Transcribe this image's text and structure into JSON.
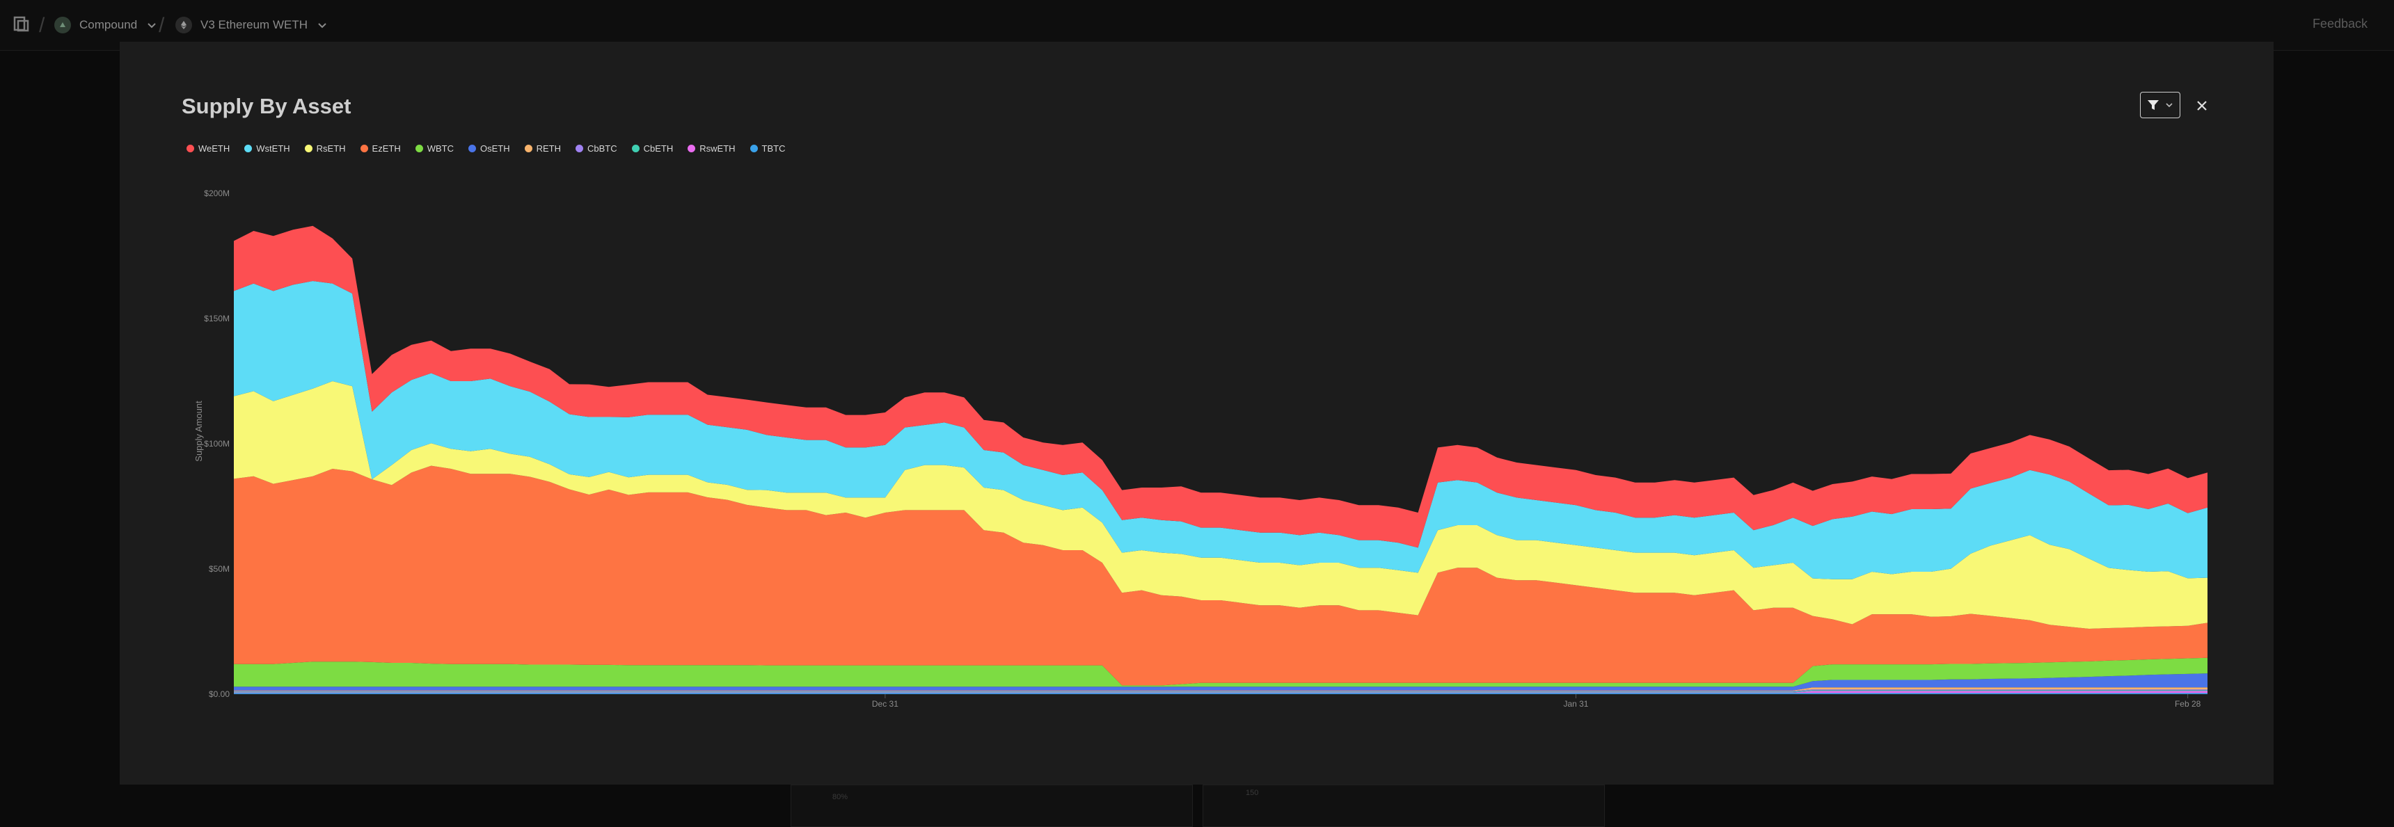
{
  "topbar": {
    "breadcrumb": [
      {
        "label": "Compound",
        "icon": "compound-icon"
      },
      {
        "label": "V3 Ethereum WETH",
        "icon": "ethereum-icon"
      }
    ],
    "feedback": "Feedback"
  },
  "modal": {
    "title": "Supply By Asset"
  },
  "colors": {
    "WeETH": "#fd4f52",
    "WstETH": "#5ddcf6",
    "RsETH": "#f8f876",
    "EzETH": "#fe7443",
    "WBTC": "#7ddc43",
    "OsETH": "#4a74e8",
    "RETH": "#f8b36c",
    "CbBTC": "#a082f2",
    "CbETH": "#3fcfb2",
    "RswETH": "#ea6cf0",
    "TBTC": "#3aa2ea"
  },
  "chart_data": {
    "type": "area",
    "stacked": true,
    "ylabel": "Supply Amount",
    "ylim": [
      0,
      200
    ],
    "y_unit": "M",
    "y_ticks": [
      "$0.00",
      "$50M",
      "$100M",
      "$150M",
      "$200M"
    ],
    "x_ticks": [
      {
        "label": "Dec 31",
        "index": 33
      },
      {
        "label": "Jan 31",
        "index": 68
      },
      {
        "label": "Feb 28",
        "index": 99
      }
    ],
    "x_range": [
      "2024-11-28",
      "2025-03-01"
    ],
    "legend_position": "top-left",
    "grid": false,
    "series_order_bottom_to_top": [
      "TBTC",
      "RswETH",
      "CbETH",
      "CbBTC",
      "RETH",
      "OsETH",
      "WBTC",
      "EzETH",
      "RsETH",
      "WstETH",
      "WeETH"
    ],
    "series": [
      {
        "name": "TBTC",
        "values": [
          0.5,
          0.5,
          0.5,
          0.5,
          0.5,
          0.5,
          0.5,
          0.5,
          0.5,
          0.5,
          0.5,
          0.5,
          0.5,
          0.5,
          0.5,
          0.5,
          0.5,
          0.5,
          0.5,
          0.5,
          0.5,
          0.5,
          0.5,
          0.5,
          0.5,
          0.5,
          0.5,
          0.5,
          0.5,
          0.5,
          0.5,
          0.5,
          0.5,
          0.5,
          0.5,
          0.5,
          0.5,
          0.5,
          0.5,
          0.5,
          0.5,
          0.5,
          0.5,
          0.5,
          0.5,
          0.5,
          0.5,
          0.5,
          0.5,
          0.5,
          0.5,
          0.5,
          0.5,
          0.5,
          0.5,
          0.5,
          0.5,
          0.5,
          0.5,
          0.5,
          0.5,
          0.5,
          0.5,
          0.5,
          0.5,
          0.5,
          0.5,
          0.5,
          0.5,
          0.5,
          0.5,
          0.5,
          0.5,
          0.5,
          0.5,
          0.5,
          0.5,
          0.5,
          0.5,
          0.5,
          0.5,
          0.5,
          0.5,
          0.5,
          0.5,
          0.5,
          0.5,
          0.5,
          0.5,
          0.5,
          0.5,
          0.5,
          0.5,
          0.5,
          0.5,
          0.5,
          0.5,
          0.5,
          0.5,
          0.5,
          0.5
        ]
      },
      {
        "name": "RswETH",
        "values": [
          0.2,
          0.2,
          0.2,
          0.2,
          0.2,
          0.2,
          0.2,
          0.2,
          0.2,
          0.2,
          0.2,
          0.2,
          0.2,
          0.2,
          0.2,
          0.2,
          0.2,
          0.2,
          0.2,
          0.2,
          0.2,
          0.2,
          0.2,
          0.2,
          0.2,
          0.2,
          0.2,
          0.2,
          0.2,
          0.2,
          0.2,
          0.2,
          0.2,
          0.2,
          0.2,
          0.2,
          0.2,
          0.2,
          0.2,
          0.2,
          0.2,
          0.2,
          0.2,
          0.2,
          0.2,
          0.2,
          0.2,
          0.2,
          0.2,
          0.2,
          0.2,
          0.2,
          0.2,
          0.2,
          0.2,
          0.2,
          0.2,
          0.2,
          0.2,
          0.2,
          0.2,
          0.2,
          0.2,
          0.2,
          0.2,
          0.2,
          0.2,
          0.2,
          0.2,
          0.2,
          0.2,
          0.2,
          0.2,
          0.2,
          0.2,
          0.2,
          0.2,
          0.2,
          0.2,
          0.2,
          0.8,
          0.8,
          0.8,
          0.8,
          0.8,
          0.8,
          0.8,
          0.8,
          0.8,
          0.8,
          0.8,
          0.8,
          0.8,
          0.8,
          0.8,
          0.8,
          0.8,
          0.8,
          0.8,
          0.8,
          0.8
        ]
      },
      {
        "name": "CbETH",
        "values": [
          0.3,
          0.3,
          0.3,
          0.3,
          0.3,
          0.3,
          0.3,
          0.3,
          0.3,
          0.3,
          0.3,
          0.3,
          0.3,
          0.3,
          0.3,
          0.3,
          0.3,
          0.3,
          0.3,
          0.3,
          0.3,
          0.3,
          0.3,
          0.3,
          0.3,
          0.3,
          0.3,
          0.3,
          0.3,
          0.3,
          0.3,
          0.3,
          0.3,
          0.3,
          0.3,
          0.3,
          0.3,
          0.3,
          0.3,
          0.3,
          0.3,
          0.3,
          0.3,
          0.3,
          0.3,
          0.3,
          0.3,
          0.3,
          0.3,
          0.3,
          0.3,
          0.3,
          0.3,
          0.3,
          0.3,
          0.3,
          0.3,
          0.3,
          0.3,
          0.3,
          0.3,
          0.3,
          0.3,
          0.3,
          0.3,
          0.3,
          0.3,
          0.3,
          0.3,
          0.3,
          0.3,
          0.3,
          0.3,
          0.3,
          0.3,
          0.3,
          0.3,
          0.3,
          0.3,
          0.3,
          0.3,
          0.3,
          0.3,
          0.3,
          0.3,
          0.3,
          0.3,
          0.3,
          0.3,
          0.3,
          0.3,
          0.3,
          0.3,
          0.3,
          0.3,
          0.3,
          0.3,
          0.3,
          0.3,
          0.3,
          0.3
        ]
      },
      {
        "name": "CbBTC",
        "values": [
          0.3,
          0.3,
          0.3,
          0.3,
          0.3,
          0.3,
          0.3,
          0.3,
          0.3,
          0.3,
          0.3,
          0.3,
          0.3,
          0.3,
          0.3,
          0.3,
          0.3,
          0.3,
          0.3,
          0.3,
          0.3,
          0.3,
          0.3,
          0.3,
          0.3,
          0.3,
          0.3,
          0.3,
          0.3,
          0.3,
          0.3,
          0.3,
          0.3,
          0.3,
          0.3,
          0.3,
          0.3,
          0.3,
          0.3,
          0.3,
          0.3,
          0.3,
          0.3,
          0.3,
          0.3,
          0.3,
          0.3,
          0.3,
          0.3,
          0.3,
          0.3,
          0.3,
          0.3,
          0.3,
          0.3,
          0.3,
          0.3,
          0.3,
          0.3,
          0.3,
          0.3,
          0.3,
          0.3,
          0.3,
          0.3,
          0.3,
          0.3,
          0.3,
          0.3,
          0.3,
          0.3,
          0.3,
          0.3,
          0.3,
          0.3,
          0.3,
          0.3,
          0.3,
          0.3,
          0.3,
          0.3,
          0.3,
          0.3,
          0.3,
          0.3,
          0.3,
          0.3,
          0.3,
          0.3,
          0.3,
          0.3,
          0.3,
          0.3,
          0.3,
          0.3,
          0.3,
          0.3,
          0.3,
          0.3,
          0.3,
          0.3
        ]
      },
      {
        "name": "RETH",
        "values": [
          0.2,
          0.2,
          0.2,
          0.2,
          0.2,
          0.2,
          0.2,
          0.2,
          0.2,
          0.2,
          0.2,
          0.2,
          0.2,
          0.2,
          0.2,
          0.2,
          0.2,
          0.2,
          0.2,
          0.2,
          0.2,
          0.2,
          0.2,
          0.2,
          0.2,
          0.2,
          0.2,
          0.2,
          0.2,
          0.2,
          0.2,
          0.2,
          0.2,
          0.2,
          0.2,
          0.2,
          0.2,
          0.2,
          0.2,
          0.2,
          0.2,
          0.2,
          0.2,
          0.2,
          0.2,
          0.2,
          0.2,
          0.2,
          0.2,
          0.2,
          0.2,
          0.2,
          0.2,
          0.2,
          0.2,
          0.2,
          0.2,
          0.2,
          0.2,
          0.2,
          0.2,
          0.2,
          0.2,
          0.2,
          0.2,
          0.2,
          0.2,
          0.2,
          0.2,
          0.2,
          0.2,
          0.2,
          0.2,
          0.2,
          0.2,
          0.2,
          0.2,
          0.2,
          0.2,
          0.2,
          0.8,
          0.8,
          0.8,
          0.8,
          0.8,
          0.8,
          0.8,
          0.8,
          0.8,
          0.8,
          0.8,
          0.8,
          0.8,
          0.8,
          0.8,
          0.8,
          0.8,
          0.8,
          0.8,
          0.8,
          0.8
        ]
      },
      {
        "name": "OsETH",
        "values": [
          1.5,
          1.5,
          1.5,
          1.5,
          1.5,
          1.5,
          1.5,
          1.5,
          1.5,
          1.5,
          1.5,
          1.5,
          1.5,
          1.5,
          1.5,
          1.5,
          1.5,
          1.5,
          1.5,
          1.5,
          1.5,
          1.5,
          1.5,
          1.5,
          1.5,
          1.5,
          1.5,
          1.5,
          1.5,
          1.5,
          1.5,
          1.5,
          1.5,
          1.5,
          1.5,
          1.5,
          1.5,
          1.5,
          1.5,
          1.5,
          1.5,
          1.5,
          1.5,
          1.5,
          1.5,
          1.5,
          1.5,
          1.5,
          1.5,
          1.5,
          1.5,
          1.5,
          1.5,
          1.5,
          1.5,
          1.5,
          1.5,
          1.5,
          1.5,
          1.5,
          1.5,
          1.5,
          1.5,
          1.5,
          1.5,
          1.5,
          1.5,
          1.5,
          1.5,
          1.5,
          1.5,
          1.5,
          1.5,
          1.5,
          1.5,
          1.5,
          1.5,
          1.5,
          1.5,
          1.5,
          2.5,
          3,
          3,
          3,
          3,
          3,
          3,
          3.2,
          3.2,
          3.4,
          3.5,
          3.6,
          3.8,
          4,
          4.2,
          4.5,
          4.7,
          5,
          5.2,
          5.4,
          5.6
        ]
      },
      {
        "name": "WBTC",
        "values": [
          9,
          9,
          9,
          9.5,
          10,
          10,
          10,
          9.8,
          9.5,
          9.5,
          9.2,
          9,
          9,
          9,
          9,
          8.8,
          8.8,
          8.8,
          8.7,
          8.7,
          8.6,
          8.6,
          8.6,
          8.6,
          8.6,
          8.6,
          8.6,
          8.5,
          8.5,
          8.5,
          8.5,
          8.5,
          8.5,
          8.5,
          8.5,
          8.5,
          8.5,
          8.5,
          8.5,
          8.5,
          8.5,
          8.5,
          8.5,
          8.5,
          8.5,
          0.5,
          0.5,
          0.5,
          1,
          1.5,
          1.5,
          1.5,
          1.5,
          1.5,
          1.5,
          1.5,
          1.5,
          1.5,
          1.5,
          1.5,
          1.5,
          1.5,
          1.5,
          1.5,
          1.5,
          1.5,
          1.5,
          1.5,
          1.5,
          1.5,
          1.5,
          1.5,
          1.5,
          1.5,
          1.5,
          1.5,
          1.5,
          1.5,
          1.5,
          1.5,
          6,
          6.2,
          6.2,
          6.2,
          6.2,
          6.2,
          6.2,
          6.2,
          6.2,
          6.2,
          6.2,
          6.2,
          6.2,
          6.2,
          6.2,
          6.2,
          6.2,
          6.2,
          6.2,
          6.2,
          6.2
        ]
      },
      {
        "name": "EzETH",
        "values": [
          74,
          75,
          72,
          73,
          74,
          77,
          76,
          73,
          71,
          76,
          79,
          78,
          76,
          76,
          76,
          75,
          73,
          70,
          68,
          70,
          68,
          69,
          69,
          69,
          67,
          66,
          64,
          63,
          62,
          62,
          60,
          61,
          59,
          61,
          62,
          62,
          62,
          62,
          54,
          53,
          49,
          48,
          46,
          46,
          41,
          37,
          38,
          36,
          35,
          33,
          33,
          32,
          31,
          31,
          30,
          31,
          31,
          29,
          29,
          28,
          27,
          44,
          46,
          46,
          42,
          41,
          41,
          40,
          39,
          38,
          37,
          36,
          36,
          36,
          35,
          36,
          37,
          29,
          30,
          30,
          20,
          18,
          16,
          20,
          20,
          20,
          19,
          19,
          20,
          19,
          18,
          17,
          15,
          14,
          13,
          13,
          13,
          13,
          13,
          13,
          14
        ]
      },
      {
        "name": "RsETH",
        "values": [
          33,
          34,
          33,
          34,
          35,
          35,
          34,
          0,
          8,
          9,
          9,
          8,
          9,
          10,
          8,
          8,
          7,
          6,
          7,
          7,
          7,
          7,
          7,
          7,
          6,
          6,
          6,
          7,
          7,
          7,
          9,
          6,
          8,
          6,
          16,
          18,
          18,
          17,
          17,
          17,
          17,
          16,
          16,
          17,
          16,
          16,
          16,
          17,
          17,
          17,
          17,
          17,
          17,
          17,
          17,
          17,
          17,
          17,
          17,
          17,
          17,
          17,
          17,
          17,
          17,
          16,
          16,
          16,
          16,
          16,
          16,
          16,
          16,
          16,
          16,
          16,
          16,
          17,
          17,
          18,
          15,
          16,
          18,
          17,
          16,
          17,
          18,
          19,
          24,
          28,
          31,
          34,
          32,
          31,
          28,
          24,
          23,
          22,
          22,
          19,
          18
        ]
      },
      {
        "name": "WstETH",
        "values": [
          42,
          43,
          44,
          44,
          43,
          39,
          37,
          27,
          29,
          28,
          28,
          27,
          28,
          28,
          27,
          26,
          25,
          24,
          24,
          22,
          24,
          24,
          24,
          24,
          23,
          23,
          24,
          22,
          22,
          21,
          21,
          20,
          20,
          21,
          17,
          16,
          17,
          16,
          15,
          15,
          14,
          14,
          14,
          14,
          13,
          13,
          13,
          13,
          13,
          12,
          12,
          12,
          12,
          12,
          12,
          12,
          11,
          11,
          11,
          11,
          10,
          19,
          18,
          17,
          17,
          17,
          16,
          16,
          16,
          15,
          15,
          14,
          14,
          15,
          15,
          15,
          15,
          15,
          16,
          18,
          21,
          24,
          25,
          24,
          24,
          25,
          25,
          24,
          26,
          25,
          25,
          26,
          28,
          27,
          26,
          25,
          26,
          25,
          27,
          26,
          28
        ]
      },
      {
        "name": "WeETH",
        "values": [
          20,
          21,
          22,
          22,
          22,
          18,
          14,
          15,
          15,
          14,
          13,
          12,
          13,
          12,
          13,
          12,
          13,
          12,
          13,
          12,
          13,
          13,
          13,
          13,
          12,
          12,
          12,
          13,
          13,
          13,
          13,
          13,
          13,
          13,
          12,
          13,
          12,
          12,
          12,
          12,
          11,
          11,
          12,
          12,
          12,
          12,
          12,
          13,
          14,
          14,
          14,
          14,
          14,
          14,
          14,
          14,
          14,
          14,
          14,
          14,
          14,
          14,
          14,
          14,
          14,
          14,
          14,
          14,
          14,
          14,
          14,
          14,
          14,
          14,
          14,
          14,
          14,
          14,
          14,
          14,
          14,
          14,
          14,
          14,
          14,
          14,
          14,
          14,
          14,
          14,
          14,
          14,
          14,
          14,
          14,
          14,
          14,
          14,
          14,
          14,
          14
        ]
      }
    ]
  },
  "background": {
    "labels": [
      "80%",
      "150"
    ]
  }
}
